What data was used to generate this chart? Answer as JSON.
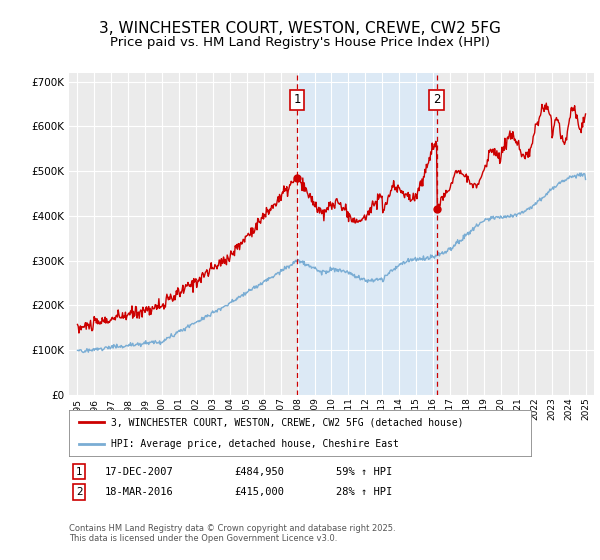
{
  "title": "3, WINCHESTER COURT, WESTON, CREWE, CW2 5FG",
  "subtitle": "Price paid vs. HM Land Registry's House Price Index (HPI)",
  "title_fontsize": 11,
  "subtitle_fontsize": 9.5,
  "background_color": "#ffffff",
  "plot_bg_color": "#ebebeb",
  "grid_color": "#ffffff",
  "red_line_color": "#cc0000",
  "blue_line_color": "#7aadd4",
  "shade_color": "#dce9f5",
  "vline_color": "#cc0000",
  "marker1_x": 2007.96,
  "marker1_y": 484950,
  "marker2_x": 2016.21,
  "marker2_y": 415000,
  "marker1_label": "1",
  "marker2_label": "2",
  "ylim": [
    0,
    720000
  ],
  "xlim": [
    1994.5,
    2025.5
  ],
  "legend_line1": "3, WINCHESTER COURT, WESTON, CREWE, CW2 5FG (detached house)",
  "legend_line2": "HPI: Average price, detached house, Cheshire East",
  "note1_num": "1",
  "note1_date": "17-DEC-2007",
  "note1_price": "£484,950",
  "note1_hpi": "59% ↑ HPI",
  "note2_num": "2",
  "note2_date": "18-MAR-2016",
  "note2_price": "£415,000",
  "note2_hpi": "28% ↑ HPI",
  "copyright": "Contains HM Land Registry data © Crown copyright and database right 2025.\nThis data is licensed under the Open Government Licence v3.0."
}
